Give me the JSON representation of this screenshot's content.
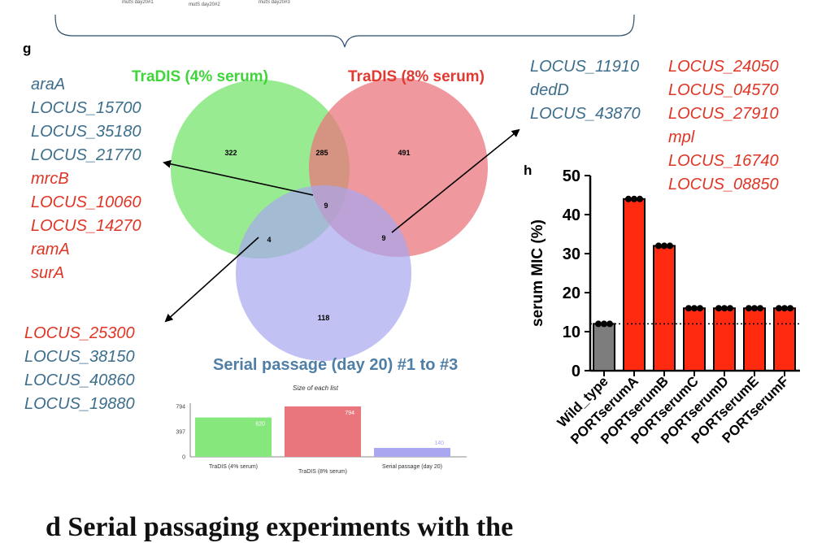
{
  "top_strip": {
    "labels": [
      "mutS day20#1",
      "mutS day20#2",
      "mutS day20#3"
    ]
  },
  "panel_g": {
    "letter": "g",
    "venn": {
      "sets": [
        {
          "name": "TraDIS (4% serum)",
          "color": "#86e77c"
        },
        {
          "name": "TraDIS (8% serum)",
          "color": "#e9767c"
        },
        {
          "name": "Serial passage (day 20) #1 to #3",
          "color": "#a8a7f0"
        }
      ],
      "regions": {
        "only_4": "322",
        "only_8": "491",
        "only_serial": "118",
        "4_and_8": "285",
        "4_and_serial": "4",
        "8_and_serial": "9",
        "all_three": "9"
      }
    },
    "list_all_three": [
      {
        "text": "araA",
        "color": "blue"
      },
      {
        "text": "LOCUS_15700",
        "color": "blue"
      },
      {
        "text": "LOCUS_35180",
        "color": "blue"
      },
      {
        "text": "LOCUS_21770",
        "color": "blue"
      },
      {
        "text": "mrcB",
        "color": "red"
      },
      {
        "text": "LOCUS_10060",
        "color": "red"
      },
      {
        "text": "LOCUS_14270",
        "color": "red"
      },
      {
        "text": "ramA",
        "color": "red"
      },
      {
        "text": "surA",
        "color": "red"
      }
    ],
    "list_4_serial": [
      {
        "text": "LOCUS_25300",
        "color": "red"
      },
      {
        "text": "LOCUS_38150",
        "color": "blue"
      },
      {
        "text": "LOCUS_40860",
        "color": "blue"
      },
      {
        "text": "LOCUS_19880",
        "color": "blue"
      }
    ],
    "list_8_serial_col1": [
      {
        "text": "LOCUS_11910",
        "color": "blue"
      },
      {
        "text": "dedD",
        "color": "blue"
      },
      {
        "text": "LOCUS_43870",
        "color": "blue"
      }
    ],
    "list_8_serial_col2": [
      {
        "text": "LOCUS_24050",
        "color": "red"
      },
      {
        "text": "LOCUS_04570",
        "color": "red"
      },
      {
        "text": "LOCUS_27910",
        "color": "red"
      },
      {
        "text": "mpl",
        "color": "red"
      },
      {
        "text": "LOCUS_16740",
        "color": "red"
      },
      {
        "text": "LOCUS_08850",
        "color": "red"
      }
    ],
    "size_chart_title": "Size of each list"
  },
  "panel_h_letter": "h",
  "caption_text": "d Serial passaging experiments with the",
  "chart_data": [
    {
      "type": "bar",
      "title": "Size of each list",
      "categories": [
        "TraDIS (4% serum)",
        "TraDIS (8% serum)",
        "Serial passage (day 20)"
      ],
      "values": [
        620,
        794,
        140
      ],
      "value_labels": [
        "620",
        "794",
        "140"
      ],
      "colors": [
        "#86e77c",
        "#e9767c",
        "#a8a7f0"
      ],
      "yticks": [
        "0",
        "397",
        "794"
      ],
      "ylim": [
        0,
        794
      ]
    },
    {
      "type": "bar",
      "ylabel": "serum MIC (%)",
      "categories": [
        "Wild_type",
        "PORTserumA",
        "PORTserumB",
        "PORTserumC",
        "PORTserumD",
        "PORTserumE",
        "PORTserumF"
      ],
      "values": [
        12,
        44,
        32,
        16,
        16,
        16,
        16
      ],
      "colors": [
        "#7d7d7d",
        "#ff2a10",
        "#ff2a10",
        "#ff2a10",
        "#ff2a10",
        "#ff2a10",
        "#ff2a10"
      ],
      "ylim": [
        0,
        50
      ],
      "yticks": [
        "0",
        "10",
        "20",
        "30",
        "40",
        "50"
      ],
      "reference_line": 12
    }
  ]
}
